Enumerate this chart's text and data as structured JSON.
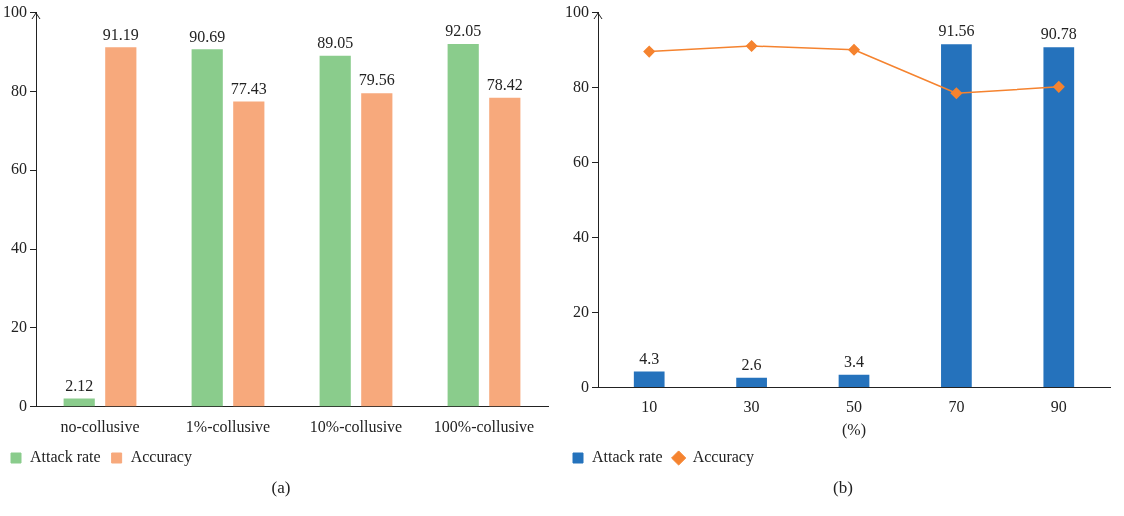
{
  "chart_data": [
    {
      "type": "bar",
      "categories": [
        "no-collusive",
        "1%-collusive",
        "10%-collusive",
        "100%-collusive"
      ],
      "series": [
        {
          "name": "Attack rate",
          "color": "#8acc8c",
          "values": [
            2.12,
            90.69,
            89.05,
            92.05
          ]
        },
        {
          "name": "Accuracy",
          "color": "#f7a97c",
          "values": [
            91.19,
            77.43,
            79.56,
            78.42
          ]
        }
      ],
      "ylim": [
        0,
        100
      ],
      "yticks": [
        0,
        20,
        40,
        60,
        80,
        100
      ],
      "grid": false,
      "legend": "bottom left",
      "data_labels": true,
      "annotations": [
        "(a)"
      ]
    },
    {
      "type": "bar",
      "categories": [
        "10",
        "30",
        "50",
        "70",
        "90"
      ],
      "xlabel": "(%)",
      "series": [
        {
          "name": "Attack rate",
          "color": "#2572bc",
          "values": [
            4.3,
            2.6,
            3.4,
            91.56,
            90.78
          ],
          "value_labels": [
            "4.3",
            "2.6",
            "3.4",
            "91.56",
            "90.78"
          ]
        },
        {
          "name": "Accuracy",
          "type": "line",
          "color": "#f5832f",
          "values": [
            89.6,
            91.1,
            90.1,
            78.5,
            80.2
          ],
          "marker": "diamond"
        }
      ],
      "ylim": [
        0,
        100
      ],
      "yticks": [
        0,
        20,
        40,
        60,
        80,
        100
      ],
      "grid": false,
      "legend": "bottom left",
      "annotations": [
        "(b)"
      ]
    }
  ]
}
